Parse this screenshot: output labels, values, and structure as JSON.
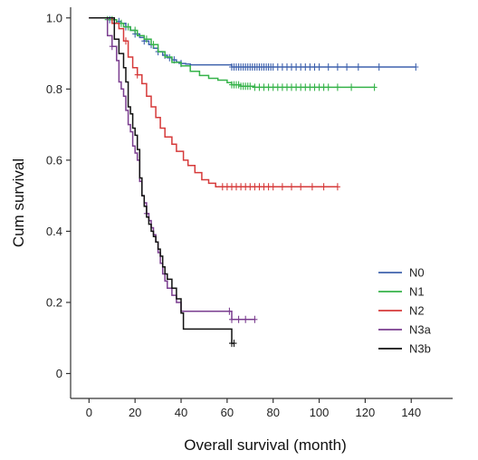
{
  "chart_data": {
    "type": "line",
    "title": "",
    "xlabel": "Overall survival (month)",
    "ylabel": "Cum survival",
    "xlim": [
      -8,
      158
    ],
    "ylim": [
      -0.07,
      1.03
    ],
    "x_ticks": [
      0,
      20,
      40,
      60,
      80,
      100,
      120,
      140
    ],
    "y_ticks": [
      0,
      0.2,
      0.4,
      0.6,
      0.8,
      1.0
    ],
    "y_tick_labels": [
      "0",
      "0.2",
      "0.4",
      "0.6",
      "0.8",
      "1.0"
    ],
    "grid": false,
    "legend_position": "right",
    "series": [
      {
        "name": "N0",
        "color": "#3f62ad",
        "steps": [
          [
            0,
            1.0
          ],
          [
            9,
            0.995
          ],
          [
            12,
            0.99
          ],
          [
            14,
            0.985
          ],
          [
            16,
            0.975
          ],
          [
            18,
            0.965
          ],
          [
            20,
            0.955
          ],
          [
            22,
            0.945
          ],
          [
            24,
            0.935
          ],
          [
            26,
            0.925
          ],
          [
            28,
            0.915
          ],
          [
            30,
            0.905
          ],
          [
            32,
            0.895
          ],
          [
            34,
            0.888
          ],
          [
            36,
            0.882
          ],
          [
            38,
            0.876
          ],
          [
            40,
            0.872
          ],
          [
            42,
            0.87
          ],
          [
            44,
            0.868
          ],
          [
            62,
            0.862
          ]
        ],
        "end": 142,
        "censors": [
          9,
          13,
          16,
          20,
          24,
          27,
          30,
          33,
          35,
          37,
          40,
          62,
          63,
          64,
          65,
          66,
          67,
          68,
          69,
          70,
          71,
          72,
          73,
          74,
          75,
          76,
          77,
          78,
          79,
          80,
          82,
          84,
          86,
          88,
          90,
          92,
          94,
          96,
          98,
          100,
          104,
          108,
          112,
          117,
          126,
          142
        ]
      },
      {
        "name": "N1",
        "color": "#36b34a",
        "steps": [
          [
            0,
            1.0
          ],
          [
            8,
            0.995
          ],
          [
            12,
            0.985
          ],
          [
            15,
            0.975
          ],
          [
            18,
            0.965
          ],
          [
            21,
            0.95
          ],
          [
            24,
            0.94
          ],
          [
            27,
            0.925
          ],
          [
            30,
            0.905
          ],
          [
            33,
            0.89
          ],
          [
            36,
            0.875
          ],
          [
            40,
            0.865
          ],
          [
            44,
            0.85
          ],
          [
            48,
            0.838
          ],
          [
            52,
            0.83
          ],
          [
            56,
            0.825
          ],
          [
            60,
            0.818
          ],
          [
            62,
            0.812
          ],
          [
            66,
            0.808
          ],
          [
            72,
            0.805
          ]
        ],
        "end": 124,
        "censors": [
          8,
          10,
          14,
          17,
          20,
          25,
          28,
          62,
          63,
          64,
          65,
          66,
          67,
          68,
          69,
          70,
          72,
          74,
          76,
          78,
          80,
          82,
          84,
          86,
          88,
          90,
          92,
          94,
          96,
          98,
          100,
          102,
          104,
          108,
          114,
          124
        ]
      },
      {
        "name": "N2",
        "color": "#d63a3a",
        "steps": [
          [
            0,
            1.0
          ],
          [
            10,
            0.985
          ],
          [
            13,
            0.97
          ],
          [
            15,
            0.935
          ],
          [
            17,
            0.89
          ],
          [
            19,
            0.86
          ],
          [
            21,
            0.84
          ],
          [
            23,
            0.815
          ],
          [
            25,
            0.78
          ],
          [
            27,
            0.75
          ],
          [
            29,
            0.72
          ],
          [
            31,
            0.69
          ],
          [
            33,
            0.665
          ],
          [
            36,
            0.645
          ],
          [
            38,
            0.625
          ],
          [
            41,
            0.6
          ],
          [
            43,
            0.585
          ],
          [
            46,
            0.565
          ],
          [
            49,
            0.545
          ],
          [
            52,
            0.535
          ],
          [
            55,
            0.525
          ]
        ],
        "end": 108,
        "censors": [
          16,
          21,
          58,
          60,
          62,
          64,
          66,
          68,
          70,
          72,
          74,
          76,
          78,
          80,
          84,
          88,
          92,
          97,
          102,
          108
        ]
      },
      {
        "name": "N3a",
        "color": "#7a3d8f",
        "steps": [
          [
            0,
            1.0
          ],
          [
            8,
            0.95
          ],
          [
            10,
            0.92
          ],
          [
            12,
            0.88
          ],
          [
            13,
            0.82
          ],
          [
            14,
            0.8
          ],
          [
            15,
            0.78
          ],
          [
            16,
            0.74
          ],
          [
            17,
            0.7
          ],
          [
            18,
            0.68
          ],
          [
            19,
            0.64
          ],
          [
            20,
            0.62
          ],
          [
            21,
            0.6
          ],
          [
            22,
            0.54
          ],
          [
            23,
            0.5
          ],
          [
            24,
            0.48
          ],
          [
            25,
            0.45
          ],
          [
            26,
            0.43
          ],
          [
            27,
            0.41
          ],
          [
            28,
            0.39
          ],
          [
            29,
            0.37
          ],
          [
            30,
            0.34
          ],
          [
            31,
            0.31
          ],
          [
            32,
            0.28
          ],
          [
            33,
            0.26
          ],
          [
            34,
            0.24
          ],
          [
            36,
            0.22
          ],
          [
            38,
            0.2
          ],
          [
            40,
            0.175
          ],
          [
            62,
            0.152
          ]
        ],
        "end": 72,
        "censors": [
          10,
          25,
          61,
          62,
          65,
          68,
          72
        ]
      },
      {
        "name": "N3b",
        "color": "#111111",
        "steps": [
          [
            0,
            1.0
          ],
          [
            11,
            0.94
          ],
          [
            13,
            0.9
          ],
          [
            15,
            0.86
          ],
          [
            16,
            0.82
          ],
          [
            17,
            0.75
          ],
          [
            18,
            0.73
          ],
          [
            19,
            0.69
          ],
          [
            20,
            0.67
          ],
          [
            21,
            0.63
          ],
          [
            22,
            0.55
          ],
          [
            23,
            0.5
          ],
          [
            24,
            0.47
          ],
          [
            25,
            0.44
          ],
          [
            26,
            0.42
          ],
          [
            27,
            0.4
          ],
          [
            28,
            0.385
          ],
          [
            29,
            0.37
          ],
          [
            30,
            0.35
          ],
          [
            31,
            0.33
          ],
          [
            32,
            0.3
          ],
          [
            33,
            0.28
          ],
          [
            34,
            0.265
          ],
          [
            36,
            0.24
          ],
          [
            38,
            0.21
          ],
          [
            40,
            0.17
          ],
          [
            41,
            0.125
          ],
          [
            62,
            0.085
          ]
        ],
        "end": 63,
        "censors": [
          62,
          63
        ]
      }
    ]
  }
}
